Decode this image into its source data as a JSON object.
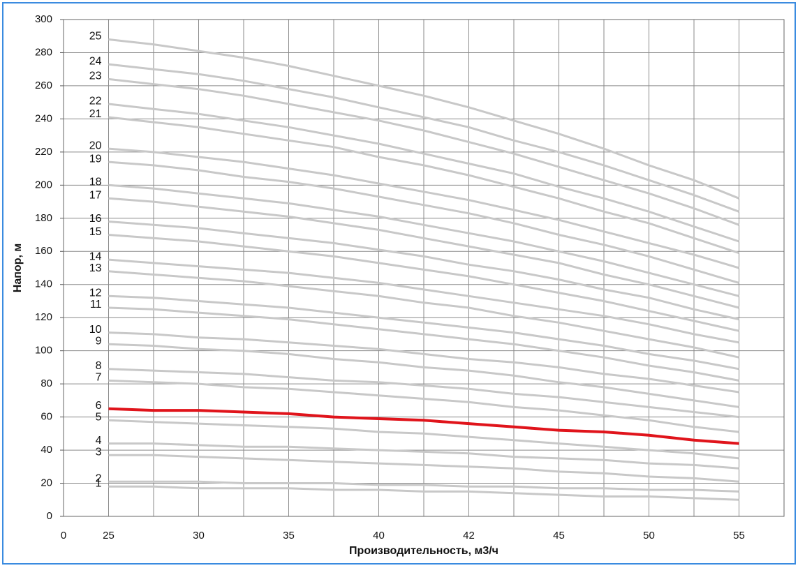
{
  "chart_data": {
    "type": "line",
    "x_label": "Производительность, м3/ч",
    "y_label": "Напор, м",
    "categories": [
      "0",
      "25",
      null,
      "30",
      null,
      "35",
      null,
      "40",
      null,
      "42",
      null,
      "45",
      null,
      "50",
      null,
      "55",
      null
    ],
    "ylim": [
      0,
      300
    ],
    "yticks": [
      0,
      20,
      40,
      60,
      80,
      100,
      120,
      140,
      160,
      180,
      200,
      220,
      240,
      260,
      280,
      300
    ],
    "grid": true,
    "series": [
      {
        "name": "1",
        "color": "#c8c8c8",
        "values": [
          null,
          18,
          18,
          17,
          17,
          17,
          16,
          16,
          15,
          15,
          14,
          13,
          12,
          12,
          11,
          10,
          null
        ]
      },
      {
        "name": "2",
        "color": "#c8c8c8",
        "values": [
          null,
          21,
          21,
          21,
          20,
          20,
          20,
          19,
          19,
          18,
          18,
          17,
          17,
          16,
          16,
          15,
          null
        ]
      },
      {
        "name": "3",
        "color": "#c8c8c8",
        "values": [
          null,
          37,
          37,
          36,
          35,
          34,
          33,
          32,
          31,
          30,
          29,
          27,
          26,
          24,
          23,
          21,
          null
        ]
      },
      {
        "name": "4",
        "color": "#c8c8c8",
        "values": [
          null,
          44,
          44,
          43,
          42,
          42,
          41,
          40,
          39,
          38,
          36,
          35,
          34,
          32,
          31,
          29,
          null
        ]
      },
      {
        "name": "5",
        "color": "#c8c8c8",
        "values": [
          null,
          58,
          57,
          56,
          55,
          54,
          53,
          51,
          50,
          48,
          46,
          44,
          42,
          40,
          38,
          35,
          null
        ]
      },
      {
        "name": "6",
        "color": "#e0141b",
        "values": [
          null,
          65,
          64,
          64,
          63,
          62,
          60,
          59,
          58,
          56,
          54,
          52,
          51,
          49,
          46,
          44,
          null
        ]
      },
      {
        "name": "7",
        "color": "#c8c8c8",
        "values": [
          null,
          82,
          81,
          80,
          78,
          77,
          75,
          73,
          71,
          69,
          66,
          64,
          61,
          58,
          54,
          51,
          null
        ]
      },
      {
        "name": "8",
        "color": "#c8c8c8",
        "values": [
          null,
          89,
          88,
          87,
          86,
          84,
          82,
          81,
          79,
          77,
          74,
          72,
          69,
          66,
          63,
          60,
          null
        ]
      },
      {
        "name": "9",
        "color": "#c8c8c8",
        "values": [
          null,
          104,
          103,
          101,
          100,
          98,
          95,
          93,
          90,
          88,
          85,
          81,
          78,
          74,
          70,
          66,
          null
        ]
      },
      {
        "name": "10",
        "color": "#c8c8c8",
        "values": [
          null,
          111,
          110,
          108,
          107,
          105,
          103,
          101,
          98,
          95,
          93,
          90,
          86,
          83,
          79,
          75,
          null
        ]
      },
      {
        "name": "11",
        "color": "#c8c8c8",
        "values": [
          null,
          126,
          125,
          123,
          121,
          119,
          116,
          113,
          110,
          107,
          104,
          100,
          96,
          91,
          87,
          82,
          null
        ]
      },
      {
        "name": "12",
        "color": "#c8c8c8",
        "values": [
          null,
          133,
          132,
          130,
          128,
          126,
          123,
          120,
          117,
          114,
          111,
          107,
          103,
          98,
          94,
          89,
          null
        ]
      },
      {
        "name": "13",
        "color": "#c8c8c8",
        "values": [
          null,
          148,
          146,
          144,
          142,
          139,
          136,
          133,
          129,
          126,
          121,
          117,
          112,
          107,
          102,
          96,
          null
        ]
      },
      {
        "name": "14",
        "color": "#c8c8c8",
        "values": [
          null,
          155,
          153,
          151,
          149,
          147,
          144,
          141,
          137,
          133,
          129,
          125,
          121,
          116,
          110,
          105,
          null
        ]
      },
      {
        "name": "15",
        "color": "#c8c8c8",
        "values": [
          null,
          170,
          168,
          166,
          163,
          160,
          157,
          153,
          149,
          145,
          140,
          135,
          130,
          124,
          118,
          112,
          null
        ]
      },
      {
        "name": "16",
        "color": "#c8c8c8",
        "values": [
          null,
          178,
          176,
          174,
          171,
          168,
          165,
          161,
          157,
          152,
          148,
          143,
          137,
          132,
          125,
          119,
          null
        ]
      },
      {
        "name": "17",
        "color": "#c8c8c8",
        "values": [
          null,
          192,
          190,
          187,
          184,
          181,
          177,
          173,
          168,
          163,
          158,
          153,
          146,
          140,
          133,
          126,
          null
        ]
      },
      {
        "name": "18",
        "color": "#c8c8c8",
        "values": [
          null,
          200,
          198,
          195,
          192,
          189,
          185,
          181,
          176,
          171,
          166,
          160,
          154,
          147,
          140,
          133,
          null
        ]
      },
      {
        "name": "19",
        "color": "#c8c8c8",
        "values": [
          null,
          214,
          212,
          209,
          205,
          202,
          198,
          193,
          188,
          183,
          177,
          170,
          164,
          157,
          149,
          141,
          null
        ]
      },
      {
        "name": "20",
        "color": "#c8c8c8",
        "values": [
          null,
          222,
          220,
          217,
          214,
          210,
          206,
          201,
          196,
          191,
          185,
          179,
          172,
          165,
          158,
          150,
          null
        ]
      },
      {
        "name": "21",
        "color": "#c8c8c8",
        "values": [
          null,
          241,
          238,
          235,
          231,
          227,
          223,
          217,
          212,
          206,
          199,
          192,
          184,
          177,
          168,
          159,
          null
        ]
      },
      {
        "name": "22",
        "color": "#c8c8c8",
        "values": [
          null,
          249,
          246,
          243,
          239,
          235,
          230,
          225,
          219,
          213,
          207,
          199,
          192,
          184,
          175,
          166,
          null
        ]
      },
      {
        "name": "23",
        "color": "#c8c8c8",
        "values": [
          null,
          264,
          261,
          258,
          254,
          249,
          244,
          239,
          233,
          226,
          219,
          211,
          203,
          195,
          186,
          176,
          null
        ]
      },
      {
        "name": "24",
        "color": "#c8c8c8",
        "values": [
          null,
          273,
          270,
          267,
          263,
          258,
          253,
          247,
          241,
          235,
          227,
          220,
          212,
          203,
          194,
          184,
          null
        ]
      },
      {
        "name": "25",
        "color": "#c8c8c8",
        "values": [
          null,
          288,
          285,
          281,
          277,
          272,
          266,
          260,
          254,
          247,
          239,
          231,
          222,
          212,
          203,
          192,
          null
        ]
      }
    ]
  }
}
